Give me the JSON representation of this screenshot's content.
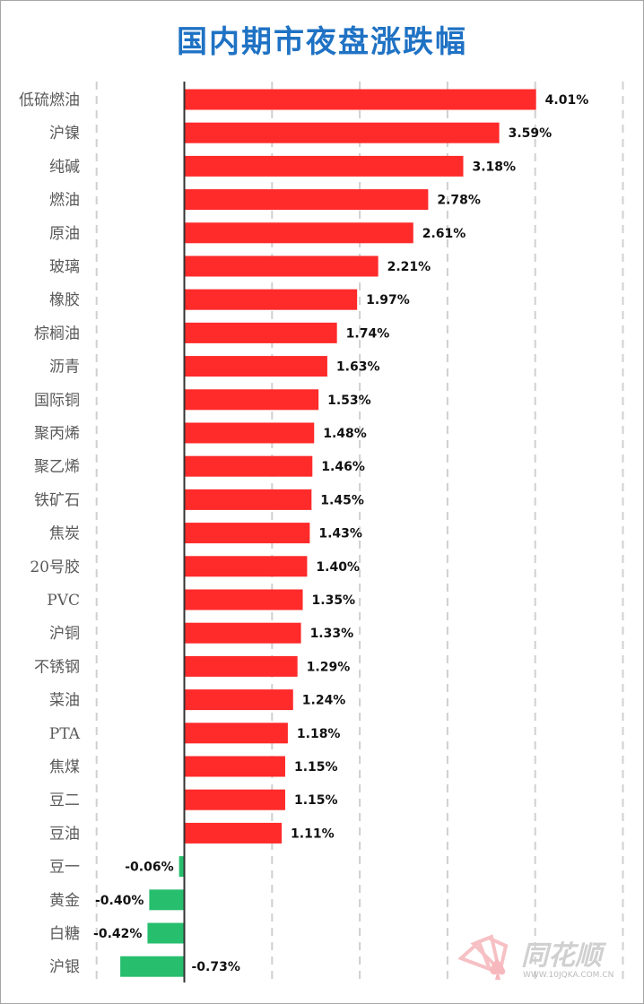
{
  "chart_data": {
    "type": "bar",
    "orientation": "horizontal",
    "title": "国内期市夜盘涨跌幅",
    "categories": [
      "低硫燃油",
      "沪镍",
      "纯碱",
      "燃油",
      "原油",
      "玻璃",
      "橡胶",
      "棕榈油",
      "沥青",
      "国际铜",
      "聚丙烯",
      "聚乙烯",
      "铁矿石",
      "焦炭",
      "20号胶",
      "PVC",
      "沪铜",
      "不锈钢",
      "菜油",
      "PTA",
      "焦煤",
      "豆二",
      "豆油",
      "豆一",
      "黄金",
      "白糖",
      "沪银"
    ],
    "values": [
      4.01,
      3.59,
      3.18,
      2.78,
      2.61,
      2.21,
      1.97,
      1.74,
      1.63,
      1.53,
      1.48,
      1.46,
      1.45,
      1.43,
      1.4,
      1.35,
      1.33,
      1.29,
      1.24,
      1.18,
      1.15,
      1.15,
      1.11,
      -0.06,
      -0.4,
      -0.42,
      -0.73
    ],
    "value_labels": [
      "4.01%",
      "3.59%",
      "3.18%",
      "2.78%",
      "2.61%",
      "2.21%",
      "1.97%",
      "1.74%",
      "1.63%",
      "1.53%",
      "1.48%",
      "1.46%",
      "1.45%",
      "1.43%",
      "1.40%",
      "1.35%",
      "1.33%",
      "1.29%",
      "1.24%",
      "1.18%",
      "1.15%",
      "1.15%",
      "1.11%",
      "-0.06%",
      "-0.40%",
      "-0.42%",
      "-0.73%"
    ],
    "xlim": [
      -1,
      5
    ],
    "grid": true,
    "colors": {
      "positive": "#ff2a2a",
      "negative": "#27be6e",
      "title": "#1f72c4"
    }
  },
  "watermark": {
    "brand": "同花顺",
    "url": "WWW.10JQKA.COM.CN"
  }
}
